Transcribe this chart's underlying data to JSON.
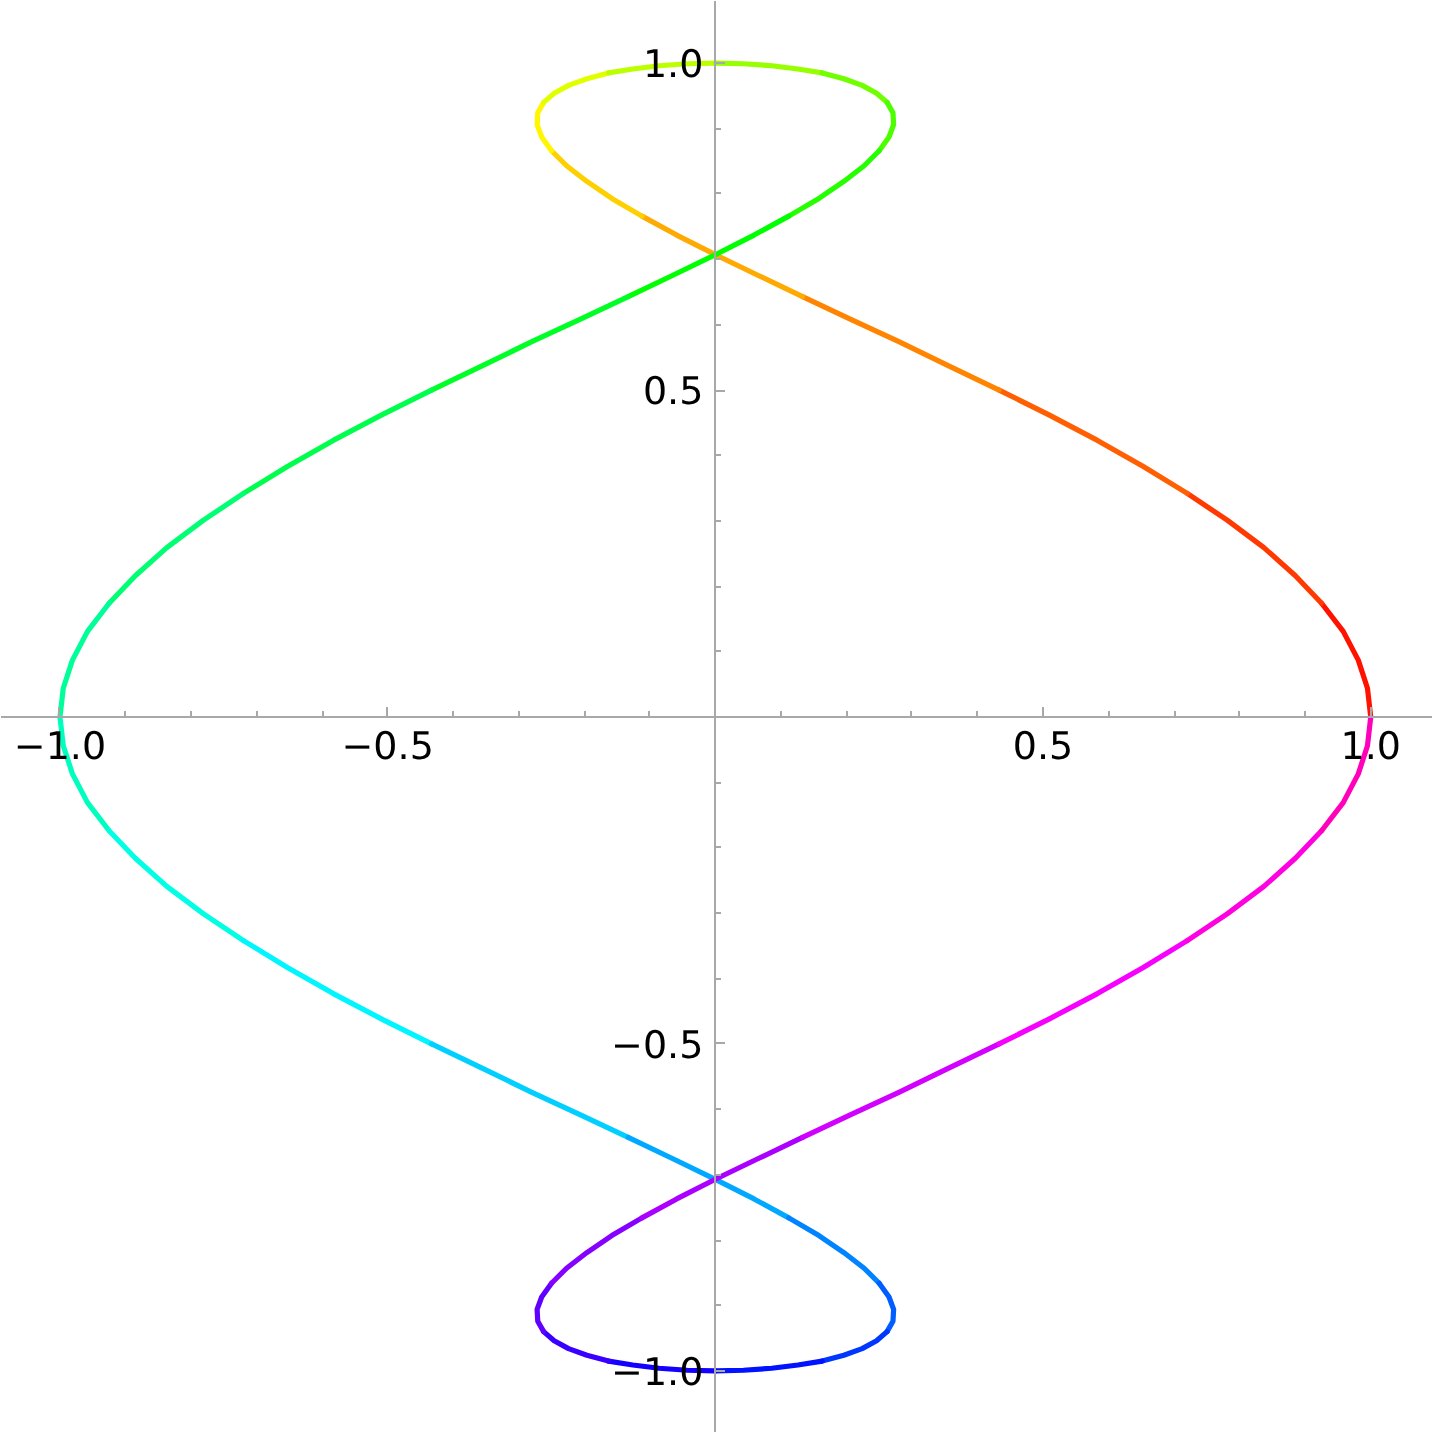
{
  "chart_data": {
    "type": "line",
    "xlim": [
      -1.09,
      1.095
    ],
    "ylim": [
      -1.095,
      1.095
    ],
    "xticks": [
      {
        "value": -1,
        "label": "−1.0"
      },
      {
        "value": -0.5,
        "label": "−0.5"
      },
      0.5,
      {
        "value": 1,
        "label": "1.0"
      }
    ],
    "yticks": [
      {
        "value": -1,
        "label": "−1.0"
      },
      {
        "value": -0.5,
        "label": "−0.5"
      },
      0.5,
      {
        "value": 1,
        "label": "1.0"
      }
    ],
    "series": [
      {
        "color": "#ff1300",
        "x": [
          1,
          0.995,
          0.981,
          0.958,
          0.925
        ],
        "values": [
          0,
          0.044,
          0.087,
          0.131,
          0.174
        ]
      },
      {
        "color": "#ff3900",
        "x": [
          0.925,
          0.885,
          0.837,
          0.781,
          0.72
        ],
        "values": [
          0.174,
          0.216,
          0.259,
          0.301,
          0.342
        ]
      },
      {
        "color": "#ff5f00",
        "x": [
          0.72,
          0.653,
          0.583,
          0.509,
          0.433
        ],
        "values": [
          0.342,
          0.383,
          0.423,
          0.462,
          0.5
        ]
      },
      {
        "color": "#ff8400",
        "x": [
          0.433,
          0.356,
          0.28,
          0.205,
          0.133
        ],
        "values": [
          0.5,
          0.537,
          0.574,
          0.609,
          0.643
        ]
      },
      {
        "color": "#ffaa00",
        "x": [
          0.133,
          0.064,
          0,
          -0.059,
          -0.112
        ],
        "values": [
          0.643,
          0.676,
          0.707,
          0.737,
          0.766
        ]
      },
      {
        "color": "#ffd000",
        "x": [
          -0.112,
          -0.158,
          -0.196,
          -0.227,
          -0.25
        ],
        "values": [
          0.766,
          0.793,
          0.819,
          0.843,
          0.866
        ]
      },
      {
        "color": "#fff600",
        "x": [
          -0.25,
          -0.265,
          -0.272,
          -0.271,
          -0.262
        ],
        "values": [
          0.866,
          0.887,
          0.906,
          0.924,
          0.94
        ]
      },
      {
        "color": "#e2ff00",
        "x": [
          -0.262,
          -0.246,
          -0.224,
          -0.196,
          -0.163
        ],
        "values": [
          0.94,
          0.954,
          0.966,
          0.976,
          0.985
        ]
      },
      {
        "color": "#bcff00",
        "x": [
          -0.163,
          -0.126,
          -0.086,
          -0.043,
          0
        ],
        "values": [
          0.985,
          0.991,
          0.996,
          0.999,
          1
        ]
      },
      {
        "color": "#97ff00",
        "x": [
          0,
          0.043,
          0.086,
          0.126,
          0.163
        ],
        "values": [
          1,
          0.999,
          0.996,
          0.991,
          0.985
        ]
      },
      {
        "color": "#71ff00",
        "x": [
          0.163,
          0.196,
          0.224,
          0.246,
          0.262
        ],
        "values": [
          0.985,
          0.976,
          0.966,
          0.954,
          0.94
        ]
      },
      {
        "color": "#4bff00",
        "x": [
          0.262,
          0.271,
          0.272,
          0.265,
          0.25
        ],
        "values": [
          0.94,
          0.924,
          0.906,
          0.887,
          0.866
        ]
      },
      {
        "color": "#25ff00",
        "x": [
          0.25,
          0.227,
          0.196,
          0.158,
          0.112
        ],
        "values": [
          0.866,
          0.843,
          0.819,
          0.793,
          0.766
        ]
      },
      {
        "color": "#00ff01",
        "x": [
          0.112,
          0.059,
          0,
          -0.064,
          -0.133
        ],
        "values": [
          0.766,
          0.737,
          0.707,
          0.676,
          0.643
        ]
      },
      {
        "color": "#00ff26",
        "x": [
          -0.133,
          -0.205,
          -0.28,
          -0.356,
          -0.433
        ],
        "values": [
          0.643,
          0.609,
          0.574,
          0.537,
          0.5
        ]
      },
      {
        "color": "#00ff4c",
        "x": [
          -0.433,
          -0.509,
          -0.583,
          -0.653,
          -0.72
        ],
        "values": [
          0.5,
          0.462,
          0.423,
          0.383,
          0.342
        ]
      },
      {
        "color": "#00ff72",
        "x": [
          -0.72,
          -0.781,
          -0.837,
          -0.885,
          -0.925
        ],
        "values": [
          0.342,
          0.301,
          0.259,
          0.216,
          0.174
        ]
      },
      {
        "color": "#00ff98",
        "x": [
          -0.925,
          -0.958,
          -0.981,
          -0.995,
          -1
        ],
        "values": [
          0.174,
          0.131,
          0.087,
          0.044,
          0
        ]
      },
      {
        "color": "#00ffbe",
        "x": [
          -1,
          -0.995,
          -0.981,
          -0.958,
          -0.925
        ],
        "values": [
          0,
          -0.044,
          -0.087,
          -0.131,
          -0.174
        ]
      },
      {
        "color": "#00ffe4",
        "x": [
          -0.925,
          -0.885,
          -0.837,
          -0.781,
          -0.72
        ],
        "values": [
          -0.174,
          -0.216,
          -0.259,
          -0.301,
          -0.342
        ]
      },
      {
        "color": "#00f5ff",
        "x": [
          -0.72,
          -0.653,
          -0.583,
          -0.509,
          -0.433
        ],
        "values": [
          -0.342,
          -0.383,
          -0.423,
          -0.462,
          -0.5
        ]
      },
      {
        "color": "#00cfff",
        "x": [
          -0.433,
          -0.356,
          -0.28,
          -0.205,
          -0.133
        ],
        "values": [
          -0.5,
          -0.537,
          -0.574,
          -0.609,
          -0.643
        ]
      },
      {
        "color": "#00a9ff",
        "x": [
          -0.133,
          -0.064,
          0,
          0.059,
          0.112
        ],
        "values": [
          -0.643,
          -0.676,
          -0.707,
          -0.737,
          -0.766
        ]
      },
      {
        "color": "#0083ff",
        "x": [
          0.112,
          0.158,
          0.196,
          0.227,
          0.25
        ],
        "values": [
          -0.766,
          -0.793,
          -0.819,
          -0.843,
          -0.866
        ]
      },
      {
        "color": "#005dff",
        "x": [
          0.25,
          0.265,
          0.272,
          0.271,
          0.262
        ],
        "values": [
          -0.866,
          -0.887,
          -0.906,
          -0.924,
          -0.94
        ]
      },
      {
        "color": "#0037ff",
        "x": [
          0.262,
          0.246,
          0.224,
          0.196,
          0.163
        ],
        "values": [
          -0.94,
          -0.954,
          -0.966,
          -0.976,
          -0.985
        ]
      },
      {
        "color": "#0012ff",
        "x": [
          0.163,
          0.126,
          0.086,
          0.043,
          0
        ],
        "values": [
          -0.985,
          -0.991,
          -0.996,
          -0.999,
          -1
        ]
      },
      {
        "color": "#1400ff",
        "x": [
          0,
          -0.043,
          -0.086,
          -0.126,
          -0.163
        ],
        "values": [
          -1,
          -0.999,
          -0.996,
          -0.991,
          -0.985
        ]
      },
      {
        "color": "#3a00ff",
        "x": [
          -0.163,
          -0.196,
          -0.224,
          -0.246,
          -0.262
        ],
        "values": [
          -0.985,
          -0.976,
          -0.966,
          -0.954,
          -0.94
        ]
      },
      {
        "color": "#6000ff",
        "x": [
          -0.262,
          -0.271,
          -0.272,
          -0.265,
          -0.25
        ],
        "values": [
          -0.94,
          -0.924,
          -0.906,
          -0.887,
          -0.866
        ]
      },
      {
        "color": "#8600ff",
        "x": [
          -0.25,
          -0.227,
          -0.196,
          -0.158,
          -0.112
        ],
        "values": [
          -0.866,
          -0.843,
          -0.819,
          -0.793,
          -0.766
        ]
      },
      {
        "color": "#ab00ff",
        "x": [
          -0.112,
          -0.059,
          0,
          0.064,
          0.133
        ],
        "values": [
          -0.766,
          -0.737,
          -0.707,
          -0.676,
          -0.643
        ]
      },
      {
        "color": "#d100ff",
        "x": [
          0.133,
          0.205,
          0.28,
          0.356,
          0.433
        ],
        "values": [
          -0.643,
          -0.609,
          -0.574,
          -0.537,
          -0.5
        ]
      },
      {
        "color": "#f700ff",
        "x": [
          0.433,
          0.509,
          0.583,
          0.653,
          0.72
        ],
        "values": [
          -0.5,
          -0.462,
          -0.423,
          -0.383,
          -0.342
        ]
      },
      {
        "color": "#ff00e1",
        "x": [
          0.72,
          0.781,
          0.837,
          0.885,
          0.925
        ],
        "values": [
          -0.342,
          -0.301,
          -0.259,
          -0.216,
          -0.174
        ]
      },
      {
        "color": "#ff00bb",
        "x": [
          0.925,
          0.958,
          0.981,
          0.995,
          1
        ],
        "values": [
          -0.174,
          -0.131,
          -0.087,
          -0.044,
          0
        ]
      }
    ]
  }
}
